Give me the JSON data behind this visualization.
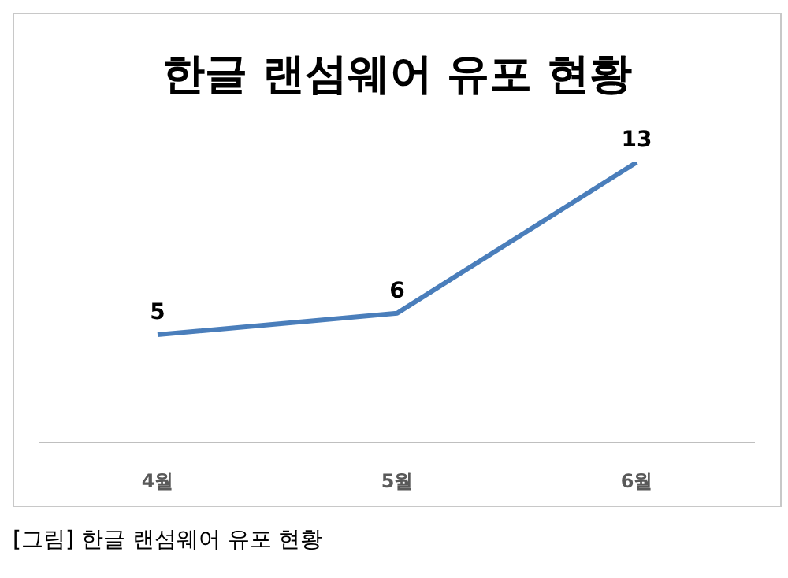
{
  "chart_data": {
    "type": "line",
    "title": "한글 랜섬웨어 유포 현황",
    "categories": [
      "4월",
      "5월",
      "6월"
    ],
    "series": [
      {
        "color": "#4a7ebb",
        "values": [
          5,
          6,
          13
        ]
      }
    ],
    "tick_labels": "x",
    "data_labels": true,
    "marker": "none",
    "line_style": "solid",
    "annotations": [
      "[그림] 한글 랜섬웨어 유포 현황"
    ]
  }
}
